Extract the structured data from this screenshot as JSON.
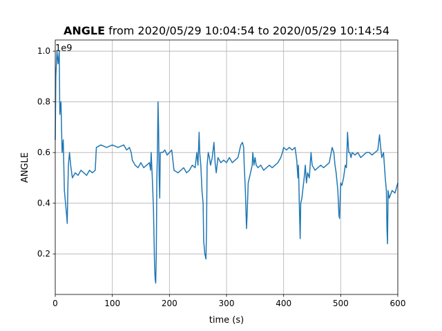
{
  "chart_data": {
    "type": "line",
    "title_bold": "ANGLE",
    "title": "from 2020/05/29 10:04:54 to 2020/05/29 10:14:54",
    "xlabel": "time (s)",
    "ylabel": "ANGLE",
    "y_offset_label": "1e9",
    "color": "#1f77b4",
    "grid": true,
    "xlim": [
      0,
      600
    ],
    "xticks": [
      0,
      100,
      200,
      300,
      400,
      500,
      600
    ],
    "ylim": [
      0.04,
      1.044
    ],
    "yticks": [
      0.2,
      0.4,
      0.6,
      0.8,
      {
        "value": 1,
        "label": "1.0"
      }
    ],
    "x": [
      0,
      1,
      3,
      5,
      7,
      8,
      10,
      12,
      14,
      15,
      16,
      18,
      20,
      21,
      22,
      23,
      25,
      27,
      30,
      35,
      40,
      45,
      50,
      55,
      60,
      65,
      70,
      72,
      80,
      90,
      100,
      110,
      120,
      125,
      130,
      133,
      135,
      140,
      145,
      150,
      155,
      160,
      165,
      167,
      168,
      170,
      172,
      174,
      175,
      176,
      177,
      178,
      179,
      180,
      181,
      182,
      183,
      184,
      188,
      192,
      196,
      200,
      204,
      206,
      208,
      215,
      220,
      225,
      230,
      235,
      240,
      245,
      248,
      250,
      252,
      253,
      255,
      257,
      259,
      260,
      262,
      264,
      265,
      266,
      268,
      270,
      272,
      275,
      278,
      280,
      282,
      285,
      290,
      295,
      300,
      305,
      310,
      315,
      320,
      322,
      325,
      328,
      330,
      331,
      333,
      335,
      336,
      338,
      340,
      343,
      345,
      346,
      348,
      350,
      352,
      355,
      360,
      365,
      370,
      375,
      380,
      385,
      390,
      395,
      398,
      400,
      405,
      410,
      415,
      420,
      423,
      425,
      426,
      428,
      429,
      430,
      432,
      434,
      436,
      438,
      440,
      442,
      445,
      448,
      450,
      455,
      460,
      465,
      470,
      475,
      480,
      485,
      488,
      490,
      492,
      495,
      497,
      498,
      500,
      502,
      505,
      508,
      510,
      512,
      514,
      516,
      518,
      520,
      525,
      530,
      535,
      540,
      545,
      550,
      555,
      560,
      565,
      568,
      570,
      572,
      575,
      578,
      580,
      581,
      582,
      583,
      585,
      590,
      595,
      600
    ],
    "values": [
      0.65,
      0.9,
      1.0,
      0.95,
      1.0,
      0.75,
      0.8,
      0.6,
      0.65,
      0.55,
      0.45,
      0.4,
      0.35,
      0.32,
      0.45,
      0.55,
      0.6,
      0.55,
      0.5,
      0.52,
      0.51,
      0.53,
      0.52,
      0.51,
      0.53,
      0.52,
      0.53,
      0.62,
      0.63,
      0.62,
      0.63,
      0.62,
      0.63,
      0.61,
      0.62,
      0.6,
      0.57,
      0.55,
      0.54,
      0.56,
      0.54,
      0.55,
      0.56,
      0.53,
      0.6,
      0.5,
      0.38,
      0.15,
      0.1,
      0.085,
      0.2,
      0.5,
      0.6,
      0.8,
      0.7,
      0.5,
      0.42,
      0.6,
      0.6,
      0.61,
      0.59,
      0.6,
      0.61,
      0.57,
      0.53,
      0.52,
      0.53,
      0.54,
      0.52,
      0.53,
      0.55,
      0.54,
      0.6,
      0.55,
      0.68,
      0.6,
      0.55,
      0.45,
      0.4,
      0.25,
      0.2,
      0.18,
      0.3,
      0.55,
      0.6,
      0.58,
      0.55,
      0.58,
      0.64,
      0.56,
      0.52,
      0.58,
      0.56,
      0.57,
      0.56,
      0.58,
      0.56,
      0.57,
      0.58,
      0.6,
      0.63,
      0.64,
      0.62,
      0.55,
      0.45,
      0.3,
      0.35,
      0.48,
      0.5,
      0.53,
      0.55,
      0.6,
      0.55,
      0.58,
      0.55,
      0.54,
      0.55,
      0.53,
      0.54,
      0.55,
      0.54,
      0.55,
      0.56,
      0.58,
      0.6,
      0.62,
      0.61,
      0.62,
      0.61,
      0.62,
      0.57,
      0.5,
      0.55,
      0.35,
      0.26,
      0.4,
      0.42,
      0.46,
      0.5,
      0.55,
      0.48,
      0.52,
      0.5,
      0.6,
      0.55,
      0.53,
      0.54,
      0.55,
      0.54,
      0.55,
      0.56,
      0.62,
      0.6,
      0.55,
      0.52,
      0.45,
      0.35,
      0.34,
      0.48,
      0.47,
      0.5,
      0.55,
      0.54,
      0.68,
      0.6,
      0.6,
      0.58,
      0.6,
      0.59,
      0.6,
      0.58,
      0.59,
      0.6,
      0.6,
      0.59,
      0.6,
      0.61,
      0.67,
      0.62,
      0.58,
      0.6,
      0.5,
      0.45,
      0.3,
      0.24,
      0.45,
      0.42,
      0.45,
      0.44,
      0.48
    ]
  }
}
